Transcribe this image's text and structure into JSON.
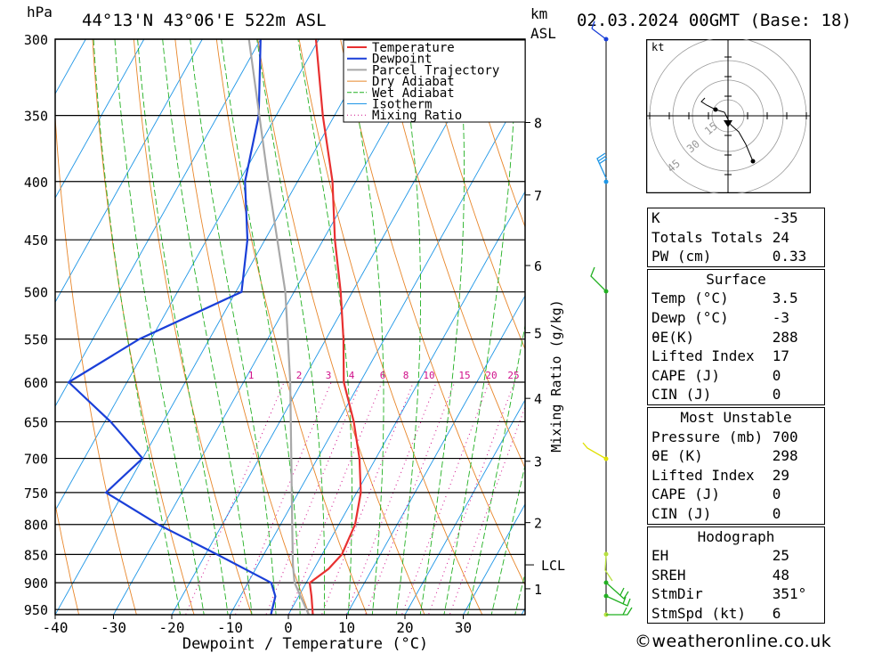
{
  "header": {
    "location": "44°13'N  43°06'E  522m  ASL",
    "datetime": "02.03.2024  00GMT  (Base: 18)",
    "pressure_unit": "hPa",
    "height_unit_line1": "km",
    "height_unit_line2": "ASL"
  },
  "chart_data": {
    "type": "line",
    "subtype": "skew-T log-p diagram",
    "xlabel": "Dewpoint / Temperature (°C)",
    "ylabel_right": "Mixing Ratio (g/kg)",
    "x_ticks": [
      -40,
      -30,
      -20,
      -10,
      0,
      10,
      20,
      30
    ],
    "pressure_levels": [
      300,
      350,
      400,
      450,
      500,
      550,
      600,
      650,
      700,
      750,
      800,
      850,
      900,
      950
    ],
    "km_ticks": [
      {
        "label": "1",
        "p": 911
      },
      {
        "label": "2",
        "p": 797
      },
      {
        "label": "3",
        "p": 704
      },
      {
        "label": "4",
        "p": 620
      },
      {
        "label": "5",
        "p": 543
      },
      {
        "label": "6",
        "p": 474
      },
      {
        "label": "7",
        "p": 411
      },
      {
        "label": "8",
        "p": 355
      }
    ],
    "lcl": {
      "label": "LCL",
      "p": 868
    },
    "mixing_ratio_labels": [
      1,
      2,
      3,
      4,
      6,
      8,
      10,
      15,
      20,
      25
    ],
    "legend": [
      "Temperature",
      "Dewpoint",
      "Parcel Trajectory",
      "Dry Adiabat",
      "Wet Adiabat",
      "Isotherm",
      "Mixing Ratio"
    ],
    "colors": {
      "temperature": "#e83030",
      "dewpoint": "#1a3fd8",
      "parcel": "#a8a8a8",
      "dry_adiabat": "#e8862a",
      "wet_adiabat": "#22b022",
      "isotherm": "#1e96e6",
      "mixing_ratio": "#d0108a"
    },
    "series": [
      {
        "name": "Temperature",
        "points": [
          [
            960,
            4.2
          ],
          [
            925,
            2.2
          ],
          [
            900,
            0.6
          ],
          [
            875,
            2.5
          ],
          [
            850,
            3.4
          ],
          [
            800,
            2.8
          ],
          [
            750,
            0.7
          ],
          [
            700,
            -2.8
          ],
          [
            650,
            -7.3
          ],
          [
            600,
            -12.8
          ],
          [
            550,
            -17.0
          ],
          [
            500,
            -22.0
          ],
          [
            450,
            -28.0
          ],
          [
            400,
            -34.0
          ],
          [
            350,
            -42.0
          ],
          [
            300,
            -50.5
          ]
        ]
      },
      {
        "name": "Dewpoint",
        "points": [
          [
            960,
            -3.0
          ],
          [
            925,
            -4.0
          ],
          [
            900,
            -6.0
          ],
          [
            850,
            -18.0
          ],
          [
            800,
            -31.0
          ],
          [
            750,
            -43.0
          ],
          [
            700,
            -40.0
          ],
          [
            650,
            -49.0
          ],
          [
            600,
            -60.0
          ],
          [
            550,
            -52.0
          ],
          [
            500,
            -39.0
          ],
          [
            450,
            -43.0
          ],
          [
            400,
            -49.0
          ],
          [
            350,
            -53.0
          ],
          [
            300,
            -60.0
          ]
        ]
      },
      {
        "name": "Parcel Trajectory",
        "points": [
          [
            960,
            3.5
          ],
          [
            900,
            -2.0
          ],
          [
            868,
            -4.0
          ],
          [
            800,
            -8.0
          ],
          [
            700,
            -14.5
          ],
          [
            600,
            -22.0
          ],
          [
            500,
            -31.5
          ],
          [
            400,
            -45.0
          ],
          [
            300,
            -62.0
          ]
        ]
      }
    ]
  },
  "hodograph": {
    "unit": "kt",
    "ring_labels": [
      "15",
      "30",
      "45"
    ]
  },
  "indices": {
    "top": [
      {
        "label": "K",
        "value": "-35"
      },
      {
        "label": "Totals Totals",
        "value": "24"
      },
      {
        "label": "PW (cm)",
        "value": "0.33"
      }
    ],
    "surface": {
      "title": "Surface",
      "rows": [
        {
          "label": "Temp (°C)",
          "value": "3.5"
        },
        {
          "label": "Dewp (°C)",
          "value": "-3"
        },
        {
          "label": "θE(K)",
          "value": "288"
        },
        {
          "label": "Lifted Index",
          "value": "17"
        },
        {
          "label": "CAPE (J)",
          "value": "0"
        },
        {
          "label": "CIN (J)",
          "value": "0"
        }
      ]
    },
    "most_unstable": {
      "title": "Most Unstable",
      "rows": [
        {
          "label": "Pressure (mb)",
          "value": "700"
        },
        {
          "label": "θE (K)",
          "value": "298"
        },
        {
          "label": "Lifted Index",
          "value": "29"
        },
        {
          "label": "CAPE (J)",
          "value": "0"
        },
        {
          "label": "CIN (J)",
          "value": "0"
        }
      ]
    },
    "hodograph": {
      "title": "Hodograph",
      "rows": [
        {
          "label": "EH",
          "value": "25"
        },
        {
          "label": "SREH",
          "value": "48"
        },
        {
          "label": "StmDir",
          "value": "351°"
        },
        {
          "label": "StmSpd (kt)",
          "value": "6"
        }
      ]
    }
  },
  "credit": "©weatheronline.co.uk"
}
